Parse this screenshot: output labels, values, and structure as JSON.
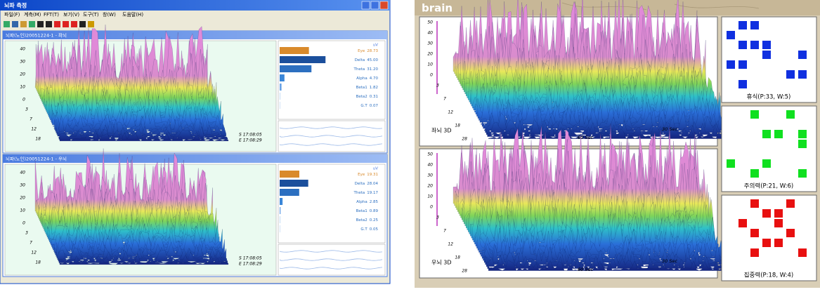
{
  "left_app": {
    "title": "뇌파 측정",
    "menu": [
      "파일(F)",
      "계측(M)",
      "FFT(T)",
      "보기(V)",
      "도구(T)",
      "창(W)",
      "도움말(H)"
    ],
    "windows": [
      {
        "title": "뇌파(노인)20051224-1 - 좌뇌",
        "unit": "uV",
        "bands": [
          {
            "name": "Eye",
            "value": 28.73,
            "label": "28.73"
          },
          {
            "name": "Delta",
            "value": 45,
            "label": "45.00"
          },
          {
            "name": "Theta",
            "value": 31.2,
            "label": "31.20"
          },
          {
            "name": "Alpha",
            "value": 4.7,
            "label": "4.70"
          },
          {
            "name": "Beta1",
            "value": 1.82,
            "label": "1.82"
          },
          {
            "name": "Beta2",
            "value": 0.31,
            "label": "0.31"
          },
          {
            "name": "G.T",
            "value": 0.07,
            "label": "0.07"
          }
        ],
        "z_axis": [
          "40",
          "30",
          "20",
          "10",
          "0"
        ],
        "freq_axis": [
          "3",
          "7",
          "12",
          "18"
        ],
        "start": "S 17:08:05",
        "end": "E 17:08:29"
      },
      {
        "title": "뇌파(노인)20051224-1 - 우뇌",
        "unit": "uV",
        "bands": [
          {
            "name": "Eye",
            "value": 19.31,
            "label": "19.31"
          },
          {
            "name": "Delta",
            "value": 28.04,
            "label": "28.04"
          },
          {
            "name": "Theta",
            "value": 19.17,
            "label": "19.17"
          },
          {
            "name": "Alpha",
            "value": 2.85,
            "label": "2.85"
          },
          {
            "name": "Beta1",
            "value": 0.89,
            "label": "0.89"
          },
          {
            "name": "Beta2",
            "value": 0.25,
            "label": "0.25"
          },
          {
            "name": "G.T",
            "value": 0.05,
            "label": "0.05"
          }
        ],
        "z_axis": [
          "40",
          "30",
          "20",
          "10",
          "0"
        ],
        "freq_axis": [
          "3",
          "7",
          "12",
          "18"
        ],
        "start": "S 17:08:05",
        "end": "E 17:08:29"
      }
    ]
  },
  "right_app": {
    "title": "brain",
    "plots": [
      {
        "label": "좌뇌 3D",
        "z_axis": [
          "50",
          "40",
          "30",
          "20",
          "10",
          "0"
        ],
        "freq_axis": [
          "3",
          "7",
          "12",
          "18",
          "28"
        ],
        "time_labels": [
          "60 Sec",
          "30 Sec"
        ]
      },
      {
        "label": "우뇌 3D",
        "z_axis": [
          "50",
          "40",
          "30",
          "20",
          "10",
          "0"
        ],
        "freq_axis": [
          "3",
          "7",
          "12",
          "18",
          "28"
        ],
        "time_labels": [
          "60 Sec",
          "30 Sec"
        ]
      }
    ],
    "grids": [
      {
        "caption": "휴식(P:33, W:5)"
      },
      {
        "caption": "주의력(P:21, W:6)"
      },
      {
        "caption": "집중력(P:18, W:4)"
      }
    ]
  }
}
